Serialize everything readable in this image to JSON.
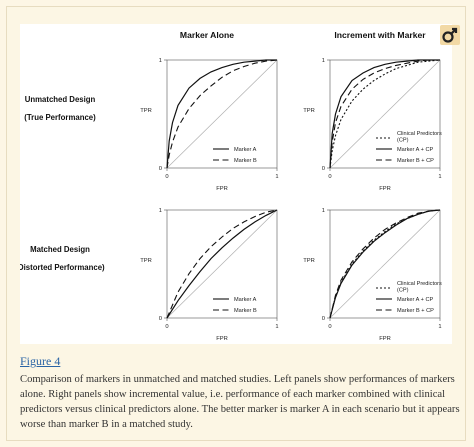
{
  "figure_link": "Figure 4",
  "caption": "Comparison of markers in unmatched and matched studies. Left panels show performances of markers alone. Right panels show incremental value, i.e. performance of each marker combined with clinical predictors versus clinical predictors alone. The better marker is marker A in each scenario but it appears worse than marker B in a matched study.",
  "columns": [
    "Marker Alone",
    "Increment with Marker"
  ],
  "rows": [
    {
      "line1": "Unmatched Design",
      "line2": "(True Performance)"
    },
    {
      "line1": "Matched Design",
      "line2": "(Distorted Performance)"
    }
  ],
  "axis": {
    "ylabel": "TPR",
    "xlabel": "FPR",
    "tick0": "0",
    "tick1": "1"
  },
  "colors": {
    "series": "#111111",
    "chance": "#b0b0b0",
    "link": "#2a64a5"
  },
  "logo_icon": "venus-mars-icon",
  "chart_data": [
    {
      "type": "line",
      "title": "",
      "xlabel": "FPR",
      "ylabel": "TPR",
      "xlim": [
        0,
        1
      ],
      "ylim": [
        0,
        1
      ],
      "legend_position": "bottom-right",
      "series": [
        {
          "name": "Marker A",
          "style": "solid",
          "x": [
            0,
            0.02,
            0.05,
            0.1,
            0.2,
            0.3,
            0.4,
            0.5,
            0.6,
            0.7,
            0.8,
            0.9,
            1
          ],
          "y": [
            0,
            0.25,
            0.42,
            0.58,
            0.74,
            0.83,
            0.89,
            0.93,
            0.96,
            0.98,
            0.99,
            1,
            1
          ]
        },
        {
          "name": "Marker B",
          "style": "dashed",
          "x": [
            0,
            0.02,
            0.05,
            0.1,
            0.2,
            0.3,
            0.4,
            0.5,
            0.6,
            0.7,
            0.8,
            0.9,
            1
          ],
          "y": [
            0,
            0.12,
            0.24,
            0.38,
            0.55,
            0.67,
            0.76,
            0.84,
            0.9,
            0.94,
            0.97,
            0.99,
            1
          ]
        }
      ]
    },
    {
      "type": "line",
      "title": "",
      "xlabel": "FPR",
      "ylabel": "TPR",
      "xlim": [
        0,
        1
      ],
      "ylim": [
        0,
        1
      ],
      "legend_position": "bottom-right",
      "series": [
        {
          "name": "Clinical Predictors (CP)",
          "style": "dotted",
          "x": [
            0,
            0.02,
            0.05,
            0.1,
            0.2,
            0.3,
            0.4,
            0.5,
            0.6,
            0.7,
            0.8,
            0.9,
            1
          ],
          "y": [
            0,
            0.16,
            0.3,
            0.45,
            0.62,
            0.73,
            0.81,
            0.87,
            0.92,
            0.95,
            0.98,
            0.99,
            1
          ]
        },
        {
          "name": "Marker A + CP",
          "style": "solid",
          "x": [
            0,
            0.02,
            0.05,
            0.1,
            0.2,
            0.3,
            0.4,
            0.5,
            0.6,
            0.7,
            0.8,
            0.9,
            1
          ],
          "y": [
            0,
            0.32,
            0.5,
            0.66,
            0.81,
            0.88,
            0.93,
            0.96,
            0.98,
            0.99,
            1,
            1,
            1
          ]
        },
        {
          "name": "Marker B + CP",
          "style": "dashed",
          "x": [
            0,
            0.02,
            0.05,
            0.1,
            0.2,
            0.3,
            0.4,
            0.5,
            0.6,
            0.7,
            0.8,
            0.9,
            1
          ],
          "y": [
            0,
            0.24,
            0.42,
            0.57,
            0.73,
            0.82,
            0.88,
            0.92,
            0.95,
            0.97,
            0.99,
            1,
            1
          ]
        }
      ]
    },
    {
      "type": "line",
      "title": "",
      "xlabel": "FPR",
      "ylabel": "TPR",
      "xlim": [
        0,
        1
      ],
      "ylim": [
        0,
        1
      ],
      "legend_position": "bottom-right",
      "series": [
        {
          "name": "Marker A",
          "style": "solid",
          "x": [
            0,
            0.1,
            0.2,
            0.3,
            0.4,
            0.5,
            0.6,
            0.7,
            0.8,
            0.9,
            1
          ],
          "y": [
            0,
            0.16,
            0.3,
            0.43,
            0.55,
            0.65,
            0.74,
            0.82,
            0.89,
            0.95,
            1
          ]
        },
        {
          "name": "Marker B",
          "style": "dashed",
          "x": [
            0,
            0.1,
            0.2,
            0.3,
            0.4,
            0.5,
            0.6,
            0.7,
            0.8,
            0.9,
            1
          ],
          "y": [
            0,
            0.24,
            0.41,
            0.55,
            0.66,
            0.75,
            0.83,
            0.89,
            0.94,
            0.98,
            1
          ]
        }
      ]
    },
    {
      "type": "line",
      "title": "",
      "xlabel": "FPR",
      "ylabel": "TPR",
      "xlim": [
        0,
        1
      ],
      "ylim": [
        0,
        1
      ],
      "legend_position": "bottom-right",
      "series": [
        {
          "name": "Clinical Predictors (CP)",
          "style": "dotted",
          "x": [
            0,
            0.05,
            0.1,
            0.2,
            0.3,
            0.4,
            0.5,
            0.6,
            0.7,
            0.8,
            0.9,
            1
          ],
          "y": [
            0,
            0.2,
            0.33,
            0.5,
            0.62,
            0.72,
            0.8,
            0.87,
            0.92,
            0.96,
            0.99,
            1
          ]
        },
        {
          "name": "Marker A + CP",
          "style": "solid",
          "x": [
            0,
            0.05,
            0.1,
            0.2,
            0.3,
            0.4,
            0.5,
            0.6,
            0.7,
            0.8,
            0.9,
            1
          ],
          "y": [
            0,
            0.19,
            0.32,
            0.49,
            0.61,
            0.71,
            0.79,
            0.86,
            0.92,
            0.96,
            0.99,
            1
          ]
        },
        {
          "name": "Marker B + CP",
          "style": "dashed",
          "x": [
            0,
            0.05,
            0.1,
            0.2,
            0.3,
            0.4,
            0.5,
            0.6,
            0.7,
            0.8,
            0.9,
            1
          ],
          "y": [
            0,
            0.21,
            0.35,
            0.52,
            0.64,
            0.74,
            0.82,
            0.88,
            0.93,
            0.97,
            0.99,
            1
          ]
        }
      ]
    }
  ]
}
